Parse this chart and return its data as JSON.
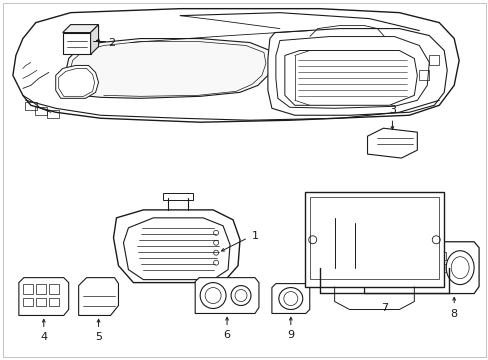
{
  "background_color": "#ffffff",
  "line_color": "#1a1a1a",
  "figure_width": 4.89,
  "figure_height": 3.6,
  "dpi": 100,
  "border_color": "#aaaaaa"
}
